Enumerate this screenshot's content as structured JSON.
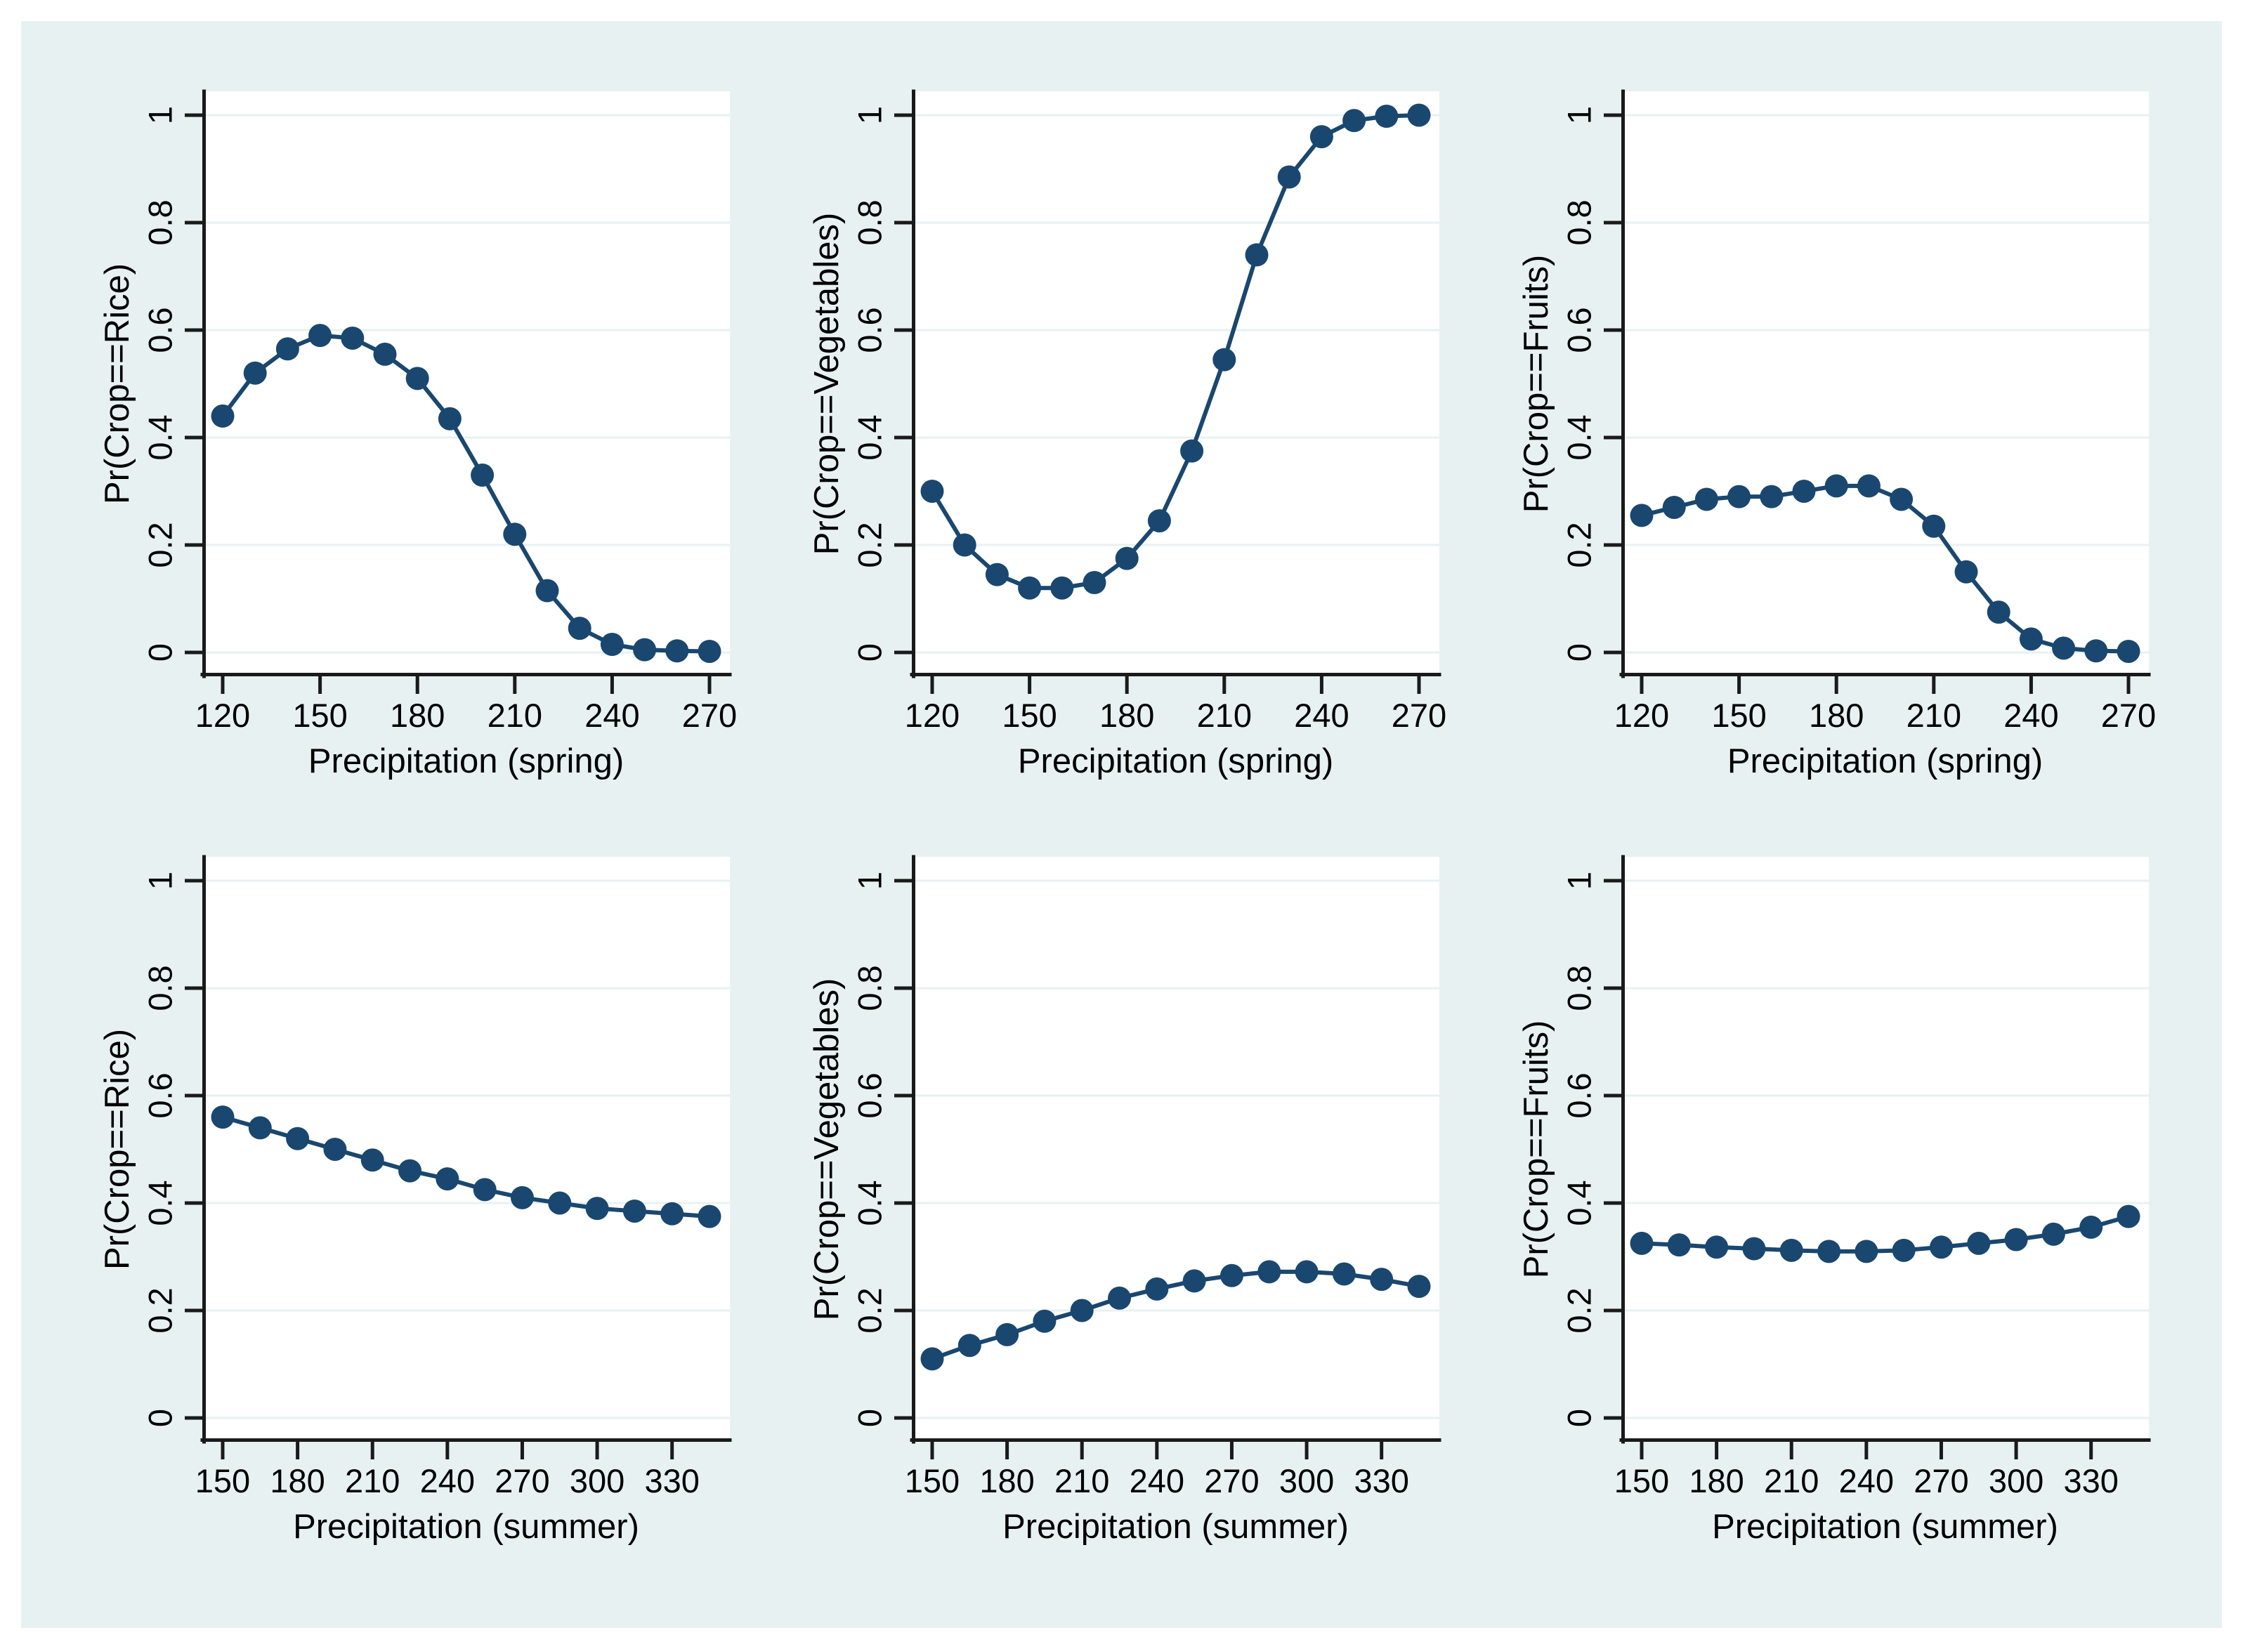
{
  "figure": {
    "description": "Six-panel Stata-style margins plot of predicted crop probabilities versus precipitation",
    "rows": 2,
    "cols": 3
  },
  "colors": {
    "page_background": "#ffffff",
    "canvas_background": "#e8f1f2",
    "plot_background": "#ffffff",
    "gridline": "#e8f1f2",
    "axis_line": "#1a1a1a",
    "tick_text": "#000000",
    "series": "#1a476f"
  },
  "chart_data": [
    {
      "type": "line",
      "title": "",
      "ylabel": "Pr(Crop==Rice)",
      "xlabel": "Precipitation (spring)",
      "x": [
        120,
        130,
        140,
        150,
        160,
        170,
        180,
        190,
        200,
        210,
        220,
        230,
        240,
        250,
        260,
        270
      ],
      "y": [
        0.44,
        0.52,
        0.565,
        0.59,
        0.585,
        0.555,
        0.51,
        0.435,
        0.33,
        0.22,
        0.115,
        0.045,
        0.015,
        0.005,
        0.003,
        0.002
      ],
      "xlim": [
        120,
        270
      ],
      "ylim": [
        0,
        1
      ],
      "x_ticks": [
        120,
        150,
        180,
        210,
        240,
        270
      ],
      "x_tick_labels": [
        "120",
        "150",
        "180",
        "210",
        "240",
        "270"
      ],
      "y_ticks": [
        0,
        0.2,
        0.4,
        0.6,
        0.8,
        1
      ],
      "y_tick_labels": [
        "0",
        "0.2",
        "0.4",
        "0.6",
        "0.8",
        "1"
      ],
      "grid": true,
      "legend": "none",
      "marker": "filled-circle"
    },
    {
      "type": "line",
      "title": "",
      "ylabel": "Pr(Crop==Vegetables)",
      "xlabel": "Precipitation (spring)",
      "x": [
        120,
        130,
        140,
        150,
        160,
        170,
        180,
        190,
        200,
        210,
        220,
        230,
        240,
        250,
        260,
        270
      ],
      "y": [
        0.3,
        0.2,
        0.145,
        0.12,
        0.12,
        0.13,
        0.175,
        0.245,
        0.375,
        0.545,
        0.74,
        0.885,
        0.96,
        0.99,
        0.998,
        1.0
      ],
      "xlim": [
        120,
        270
      ],
      "ylim": [
        0,
        1
      ],
      "x_ticks": [
        120,
        150,
        180,
        210,
        240,
        270
      ],
      "x_tick_labels": [
        "120",
        "150",
        "180",
        "210",
        "240",
        "270"
      ],
      "y_ticks": [
        0,
        0.2,
        0.4,
        0.6,
        0.8,
        1
      ],
      "y_tick_labels": [
        "0",
        "0.2",
        "0.4",
        "0.6",
        "0.8",
        "1"
      ],
      "grid": true,
      "legend": "none",
      "marker": "filled-circle"
    },
    {
      "type": "line",
      "title": "",
      "ylabel": "Pr(Crop==Fruits)",
      "xlabel": "Precipitation (spring)",
      "x": [
        120,
        130,
        140,
        150,
        160,
        170,
        180,
        190,
        200,
        210,
        220,
        230,
        240,
        250,
        260,
        270
      ],
      "y": [
        0.255,
        0.27,
        0.285,
        0.29,
        0.29,
        0.3,
        0.31,
        0.31,
        0.285,
        0.235,
        0.15,
        0.075,
        0.025,
        0.008,
        0.003,
        0.002
      ],
      "xlim": [
        120,
        270
      ],
      "ylim": [
        0,
        1
      ],
      "x_ticks": [
        120,
        150,
        180,
        210,
        240,
        270
      ],
      "x_tick_labels": [
        "120",
        "150",
        "180",
        "210",
        "240",
        "270"
      ],
      "y_ticks": [
        0,
        0.2,
        0.4,
        0.6,
        0.8,
        1
      ],
      "y_tick_labels": [
        "0",
        "0.2",
        "0.4",
        "0.6",
        "0.8",
        "1"
      ],
      "grid": true,
      "legend": "none",
      "marker": "filled-circle"
    },
    {
      "type": "line",
      "title": "",
      "ylabel": "Pr(Crop==Rice)",
      "xlabel": "Precipitation (summer)",
      "x": [
        150,
        165,
        180,
        195,
        210,
        225,
        240,
        255,
        270,
        285,
        300,
        315,
        330,
        345
      ],
      "y": [
        0.56,
        0.54,
        0.52,
        0.5,
        0.48,
        0.46,
        0.445,
        0.425,
        0.41,
        0.4,
        0.39,
        0.385,
        0.38,
        0.375
      ],
      "xlim": [
        150,
        345
      ],
      "ylim": [
        0,
        1
      ],
      "x_ticks": [
        150,
        180,
        210,
        240,
        270,
        300,
        330
      ],
      "x_tick_labels": [
        "150",
        "180",
        "210",
        "240",
        "270",
        "300",
        "330"
      ],
      "y_ticks": [
        0,
        0.2,
        0.4,
        0.6,
        0.8,
        1
      ],
      "y_tick_labels": [
        "0",
        "0.2",
        "0.4",
        "0.6",
        "0.8",
        "1"
      ],
      "grid": true,
      "legend": "none",
      "marker": "filled-circle"
    },
    {
      "type": "line",
      "title": "",
      "ylabel": "Pr(Crop==Vegetables)",
      "xlabel": "Precipitation (summer)",
      "x": [
        150,
        165,
        180,
        195,
        210,
        225,
        240,
        255,
        270,
        285,
        300,
        315,
        330,
        345
      ],
      "y": [
        0.11,
        0.135,
        0.155,
        0.18,
        0.2,
        0.223,
        0.24,
        0.255,
        0.265,
        0.272,
        0.272,
        0.268,
        0.258,
        0.245
      ],
      "xlim": [
        150,
        345
      ],
      "ylim": [
        0,
        1
      ],
      "x_ticks": [
        150,
        180,
        210,
        240,
        270,
        300,
        330
      ],
      "x_tick_labels": [
        "150",
        "180",
        "210",
        "240",
        "270",
        "300",
        "330"
      ],
      "y_ticks": [
        0,
        0.2,
        0.4,
        0.6,
        0.8,
        1
      ],
      "y_tick_labels": [
        "0",
        "0.2",
        "0.4",
        "0.6",
        "0.8",
        "1"
      ],
      "grid": true,
      "legend": "none",
      "marker": "filled-circle"
    },
    {
      "type": "line",
      "title": "",
      "ylabel": "Pr(Crop==Fruits)",
      "xlabel": "Precipitation (summer)",
      "x": [
        150,
        165,
        180,
        195,
        210,
        225,
        240,
        255,
        270,
        285,
        300,
        315,
        330,
        345
      ],
      "y": [
        0.325,
        0.322,
        0.318,
        0.315,
        0.312,
        0.31,
        0.31,
        0.312,
        0.318,
        0.325,
        0.332,
        0.342,
        0.355,
        0.375
      ],
      "xlim": [
        150,
        345
      ],
      "ylim": [
        0,
        1
      ],
      "x_ticks": [
        150,
        180,
        210,
        240,
        270,
        300,
        330
      ],
      "x_tick_labels": [
        "150",
        "180",
        "210",
        "240",
        "270",
        "300",
        "330"
      ],
      "y_ticks": [
        0,
        0.2,
        0.4,
        0.6,
        0.8,
        1
      ],
      "y_tick_labels": [
        "0",
        "0.2",
        "0.4",
        "0.6",
        "0.8",
        "1"
      ],
      "grid": true,
      "legend": "none",
      "marker": "filled-circle"
    }
  ]
}
